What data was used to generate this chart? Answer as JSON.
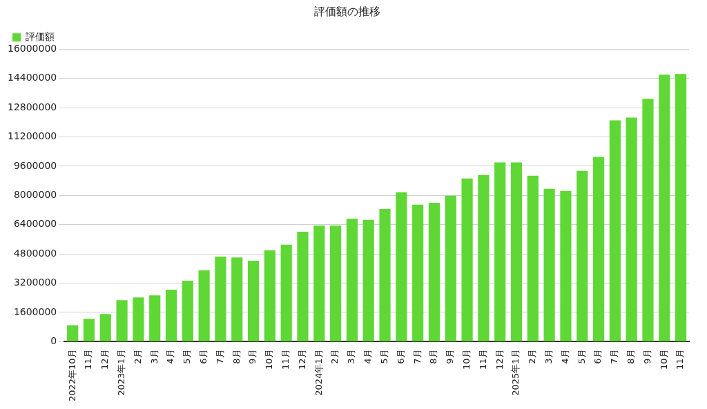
{
  "chart_data": {
    "type": "bar",
    "title": "評価額の推移",
    "categories": [
      "2022年10月",
      "11月",
      "12月",
      "2023年1月",
      "2月",
      "3月",
      "4月",
      "5月",
      "6月",
      "7月",
      "8月",
      "9月",
      "10月",
      "11月",
      "12月",
      "2024年1月",
      "2月",
      "3月",
      "4月",
      "5月",
      "6月",
      "7月",
      "8月",
      "9月",
      "10月",
      "11月",
      "12月",
      "2025年1月",
      "2月",
      "3月",
      "4月",
      "5月",
      "6月",
      "7月",
      "8月",
      "9月",
      "10月",
      "11月"
    ],
    "series": [
      {
        "name": "評価額",
        "color": "#5fd835",
        "values": [
          900000,
          1250000,
          1510000,
          2270000,
          2420000,
          2530000,
          2840000,
          3330000,
          3900000,
          4650000,
          4610000,
          4430000,
          4990000,
          5300000,
          6010000,
          6350000,
          6350000,
          6730000,
          6660000,
          7260000,
          8170000,
          7490000,
          7600000,
          7980000,
          8930000,
          9110000,
          9800000,
          9800000,
          9080000,
          8360000,
          8250000,
          9340000,
          10100000,
          12100000,
          12250000,
          13280000,
          14600000,
          14640000
        ]
      }
    ],
    "ylim": [
      0,
      16000000
    ],
    "yticks": [
      0,
      1600000,
      3200000,
      4800000,
      6400000,
      8000000,
      9600000,
      11200000,
      12800000,
      14400000,
      16000000
    ],
    "grid": "y",
    "legend": "top left"
  }
}
